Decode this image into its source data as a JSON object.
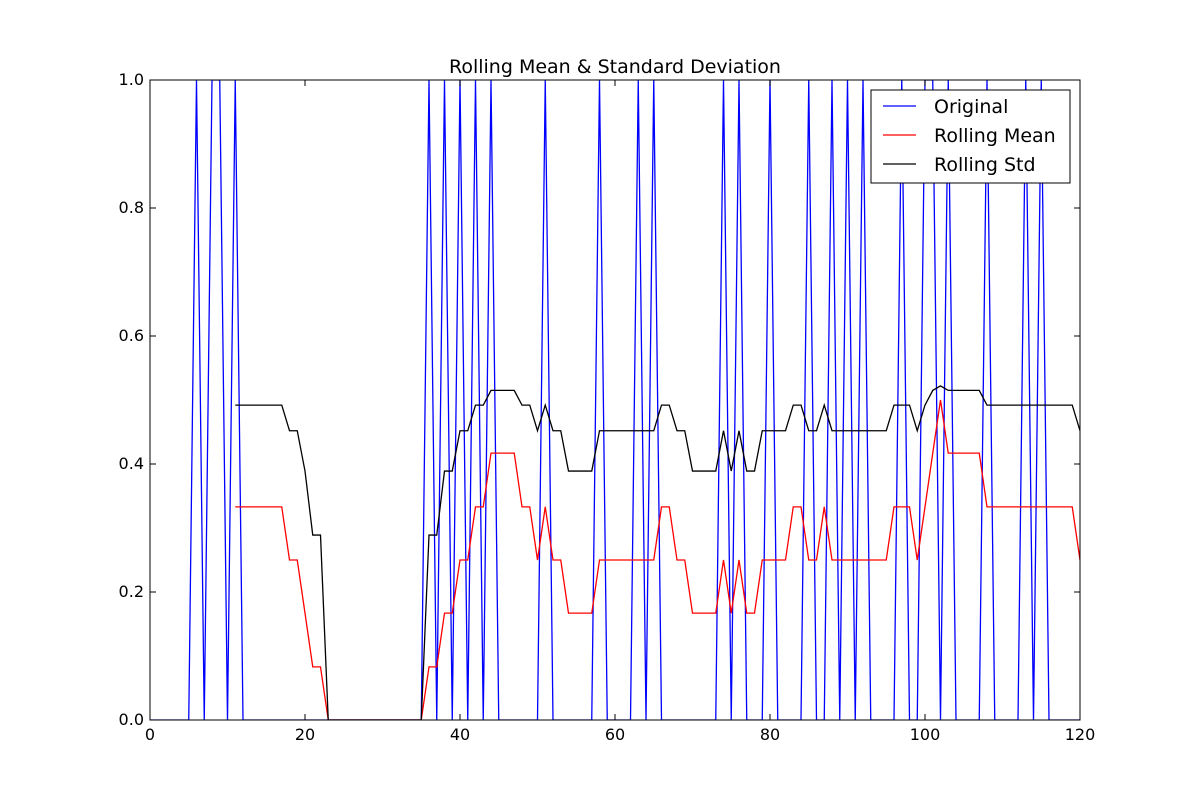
{
  "chart_data": {
    "type": "line",
    "title": "Rolling Mean & Standard Deviation",
    "xlabel": "",
    "ylabel": "",
    "xlim": [
      0,
      120
    ],
    "ylim": [
      0.0,
      1.0
    ],
    "xticks": [
      "0",
      "20",
      "40",
      "60",
      "80",
      "100",
      "120"
    ],
    "yticks": [
      "0.0",
      "0.2",
      "0.4",
      "0.6",
      "0.8",
      "1.0"
    ],
    "grid": false,
    "legend_position": "top-right",
    "series": [
      {
        "name": "Original",
        "color": "#0000ff",
        "x": [
          0,
          1,
          2,
          3,
          4,
          5,
          6,
          7,
          8,
          9,
          10,
          11,
          12,
          13,
          14,
          15,
          16,
          17,
          18,
          19,
          20,
          21,
          22,
          23,
          24,
          25,
          26,
          27,
          28,
          29,
          30,
          31,
          32,
          33,
          34,
          35,
          36,
          37,
          38,
          39,
          40,
          41,
          42,
          43,
          44,
          45,
          46,
          47,
          48,
          49,
          50,
          51,
          52,
          53,
          54,
          55,
          56,
          57,
          58,
          59,
          60,
          61,
          62,
          63,
          64,
          65,
          66,
          67,
          68,
          69,
          70,
          71,
          72,
          73,
          74,
          75,
          76,
          77,
          78,
          79,
          80,
          81,
          82,
          83,
          84,
          85,
          86,
          87,
          88,
          89,
          90,
          91,
          92,
          93,
          94,
          95,
          96,
          97,
          98,
          99,
          100,
          101,
          102,
          103,
          104,
          105,
          106,
          107,
          108,
          109,
          110,
          111,
          112,
          113,
          114,
          115,
          116,
          117,
          118,
          119,
          120
        ],
        "y": [
          0,
          0,
          0,
          0,
          0,
          0,
          1,
          0,
          1,
          1,
          0,
          1,
          0,
          0,
          0,
          0,
          0,
          0,
          0,
          0,
          0,
          0,
          0,
          0,
          0,
          0,
          0,
          0,
          0,
          0,
          0,
          0,
          0,
          0,
          0,
          0,
          1,
          0,
          1,
          0,
          1,
          0,
          1,
          0,
          1,
          0,
          0,
          0,
          0,
          0,
          0,
          1,
          0,
          0,
          0,
          0,
          0,
          0,
          1,
          0,
          0,
          0,
          0,
          1,
          0,
          1,
          0,
          0,
          0,
          0,
          0,
          0,
          0,
          0,
          1,
          0,
          1,
          0,
          0,
          0,
          1,
          0,
          0,
          0,
          0,
          1,
          0,
          0,
          1,
          0,
          1,
          0,
          1,
          0,
          0,
          0,
          0,
          1,
          0,
          0,
          1,
          1,
          0,
          1,
          0,
          0,
          0,
          0,
          1,
          0,
          0,
          0,
          0,
          1,
          0,
          1,
          0,
          0,
          0,
          0,
          0
        ]
      },
      {
        "name": "Rolling Mean",
        "color": "#ff0000",
        "x": [
          11,
          17,
          18,
          19,
          20,
          21,
          22,
          23,
          35,
          36,
          37,
          38,
          39,
          40,
          41,
          42,
          43,
          44,
          45,
          46,
          47,
          48,
          49,
          50,
          51,
          52,
          53,
          54,
          55,
          56,
          57,
          58,
          59,
          60,
          61,
          62,
          63,
          64,
          65,
          66,
          67,
          68,
          69,
          70,
          71,
          72,
          73,
          74,
          75,
          76,
          77,
          78,
          79,
          80,
          81,
          82,
          83,
          84,
          85,
          86,
          87,
          88,
          89,
          90,
          91,
          92,
          93,
          94,
          95,
          96,
          97,
          98,
          99,
          100,
          101,
          102,
          103,
          104,
          105,
          106,
          107,
          108,
          109,
          110,
          111,
          112,
          113,
          114,
          115,
          116,
          117,
          118,
          119,
          120
        ],
        "y": [
          0.333,
          0.333,
          0.25,
          0.25,
          0.167,
          0.083,
          0.083,
          0,
          0,
          0.083,
          0.083,
          0.167,
          0.167,
          0.25,
          0.25,
          0.333,
          0.333,
          0.417,
          0.417,
          0.417,
          0.417,
          0.333,
          0.333,
          0.25,
          0.333,
          0.25,
          0.25,
          0.167,
          0.167,
          0.167,
          0.167,
          0.25,
          0.25,
          0.25,
          0.25,
          0.25,
          0.25,
          0.25,
          0.25,
          0.333,
          0.333,
          0.25,
          0.25,
          0.167,
          0.167,
          0.167,
          0.167,
          0.25,
          0.167,
          0.25,
          0.167,
          0.167,
          0.25,
          0.25,
          0.25,
          0.25,
          0.333,
          0.333,
          0.25,
          0.25,
          0.333,
          0.25,
          0.25,
          0.25,
          0.25,
          0.25,
          0.25,
          0.25,
          0.25,
          0.333,
          0.333,
          0.333,
          0.25,
          0.333,
          0.417,
          0.5,
          0.417,
          0.417,
          0.417,
          0.417,
          0.417,
          0.333,
          0.333,
          0.333,
          0.333,
          0.333,
          0.333,
          0.333,
          0.333,
          0.333,
          0.333,
          0.333,
          0.333,
          0.25
        ]
      },
      {
        "name": "Rolling Std",
        "color": "#000000",
        "x": [
          11,
          17,
          18,
          19,
          20,
          21,
          22,
          23,
          35,
          36,
          37,
          38,
          39,
          40,
          41,
          42,
          43,
          44,
          45,
          46,
          47,
          48,
          49,
          50,
          51,
          52,
          53,
          54,
          55,
          56,
          57,
          58,
          59,
          60,
          61,
          62,
          63,
          64,
          65,
          66,
          67,
          68,
          69,
          70,
          71,
          72,
          73,
          74,
          75,
          76,
          77,
          78,
          79,
          80,
          81,
          82,
          83,
          84,
          85,
          86,
          87,
          88,
          89,
          90,
          91,
          92,
          93,
          94,
          95,
          96,
          97,
          98,
          99,
          100,
          101,
          102,
          103,
          104,
          105,
          106,
          107,
          108,
          109,
          110,
          111,
          112,
          113,
          114,
          115,
          116,
          117,
          118,
          119,
          120
        ],
        "y": [
          0.492,
          0.492,
          0.452,
          0.452,
          0.389,
          0.289,
          0.289,
          0,
          0,
          0.289,
          0.289,
          0.389,
          0.389,
          0.452,
          0.452,
          0.492,
          0.492,
          0.515,
          0.515,
          0.515,
          0.515,
          0.492,
          0.492,
          0.452,
          0.492,
          0.452,
          0.452,
          0.389,
          0.389,
          0.389,
          0.389,
          0.452,
          0.452,
          0.452,
          0.452,
          0.452,
          0.452,
          0.452,
          0.452,
          0.492,
          0.492,
          0.452,
          0.452,
          0.389,
          0.389,
          0.389,
          0.389,
          0.452,
          0.389,
          0.452,
          0.389,
          0.389,
          0.452,
          0.452,
          0.452,
          0.452,
          0.492,
          0.492,
          0.452,
          0.452,
          0.492,
          0.452,
          0.452,
          0.452,
          0.452,
          0.452,
          0.452,
          0.452,
          0.452,
          0.492,
          0.492,
          0.492,
          0.452,
          0.492,
          0.515,
          0.522,
          0.515,
          0.515,
          0.515,
          0.515,
          0.515,
          0.492,
          0.492,
          0.492,
          0.492,
          0.492,
          0.492,
          0.492,
          0.492,
          0.492,
          0.492,
          0.492,
          0.492,
          0.452
        ]
      }
    ]
  }
}
